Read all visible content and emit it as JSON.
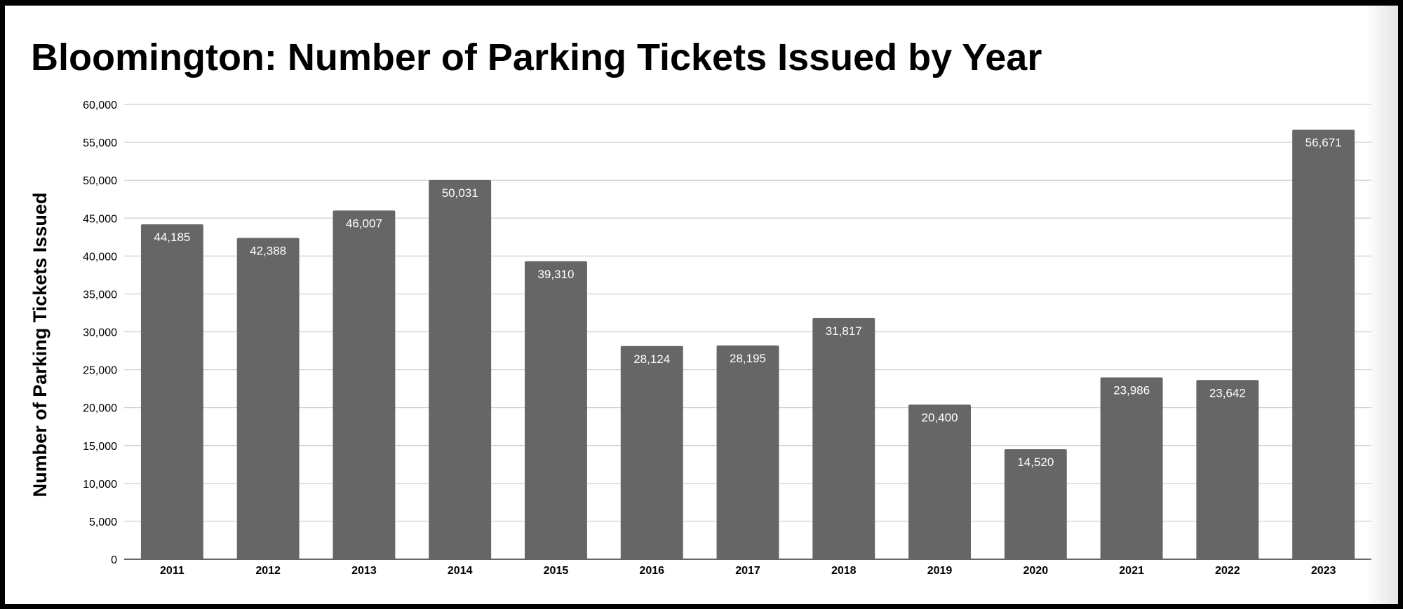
{
  "chart_data": {
    "type": "bar",
    "title": "Bloomington: Number of Parking Tickets Issued by Year",
    "xlabel": "",
    "ylabel": "Number of Parking Tickets Issued",
    "categories": [
      "2011",
      "2012",
      "2013",
      "2014",
      "2015",
      "2016",
      "2017",
      "2018",
      "2019",
      "2020",
      "2021",
      "2022",
      "2023"
    ],
    "values": [
      44185,
      42388,
      46007,
      50031,
      39310,
      28124,
      28195,
      31817,
      20400,
      14520,
      23986,
      23642,
      56671
    ],
    "data_labels": [
      "44,185",
      "42,388",
      "46,007",
      "50,031",
      "39,310",
      "28,124",
      "28,195",
      "31,817",
      "20,400",
      "14,520",
      "23,986",
      "23,642",
      "56,671"
    ],
    "ylim": [
      0,
      60000
    ],
    "yticks": [
      0,
      5000,
      10000,
      15000,
      20000,
      25000,
      30000,
      35000,
      40000,
      45000,
      50000,
      55000,
      60000
    ],
    "ytick_labels": [
      "0",
      "5,000",
      "10,000",
      "15,000",
      "20,000",
      "25,000",
      "30,000",
      "35,000",
      "40,000",
      "45,000",
      "50,000",
      "55,000",
      "60,000"
    ],
    "grid": true,
    "legend": "none",
    "bar_color": "#666666",
    "label_color": "#ffffff"
  }
}
